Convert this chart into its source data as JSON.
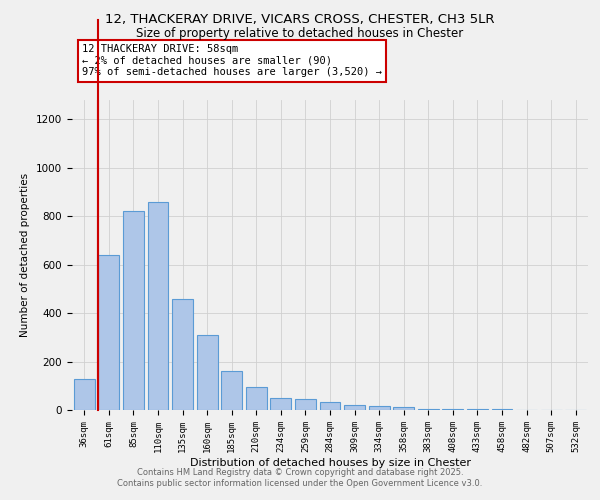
{
  "title1": "12, THACKERAY DRIVE, VICARS CROSS, CHESTER, CH3 5LR",
  "title2": "Size of property relative to detached houses in Chester",
  "xlabel": "Distribution of detached houses by size in Chester",
  "ylabel": "Number of detached properties",
  "categories": [
    "36sqm",
    "61sqm",
    "85sqm",
    "110sqm",
    "135sqm",
    "160sqm",
    "185sqm",
    "210sqm",
    "234sqm",
    "259sqm",
    "284sqm",
    "309sqm",
    "334sqm",
    "358sqm",
    "383sqm",
    "408sqm",
    "433sqm",
    "458sqm",
    "482sqm",
    "507sqm",
    "532sqm"
  ],
  "values": [
    130,
    640,
    820,
    860,
    460,
    310,
    160,
    95,
    50,
    45,
    35,
    20,
    15,
    12,
    5,
    5,
    5,
    5,
    2,
    2,
    2
  ],
  "bar_color": "#aec6e8",
  "bar_edge_color": "#5b9bd5",
  "highlight_index": 1,
  "highlight_line_color": "#cc0000",
  "annotation_title": "12 THACKERAY DRIVE: 58sqm",
  "annotation_line1": "← 2% of detached houses are smaller (90)",
  "annotation_line2": "97% of semi-detached houses are larger (3,520) →",
  "annotation_box_color": "#ffffff",
  "annotation_box_edge": "#cc0000",
  "ylim": [
    0,
    1280
  ],
  "yticks": [
    0,
    200,
    400,
    600,
    800,
    1000,
    1200
  ],
  "footer1": "Contains HM Land Registry data © Crown copyright and database right 2025.",
  "footer2": "Contains public sector information licensed under the Open Government Licence v3.0.",
  "bg_color": "#f0f0f0"
}
